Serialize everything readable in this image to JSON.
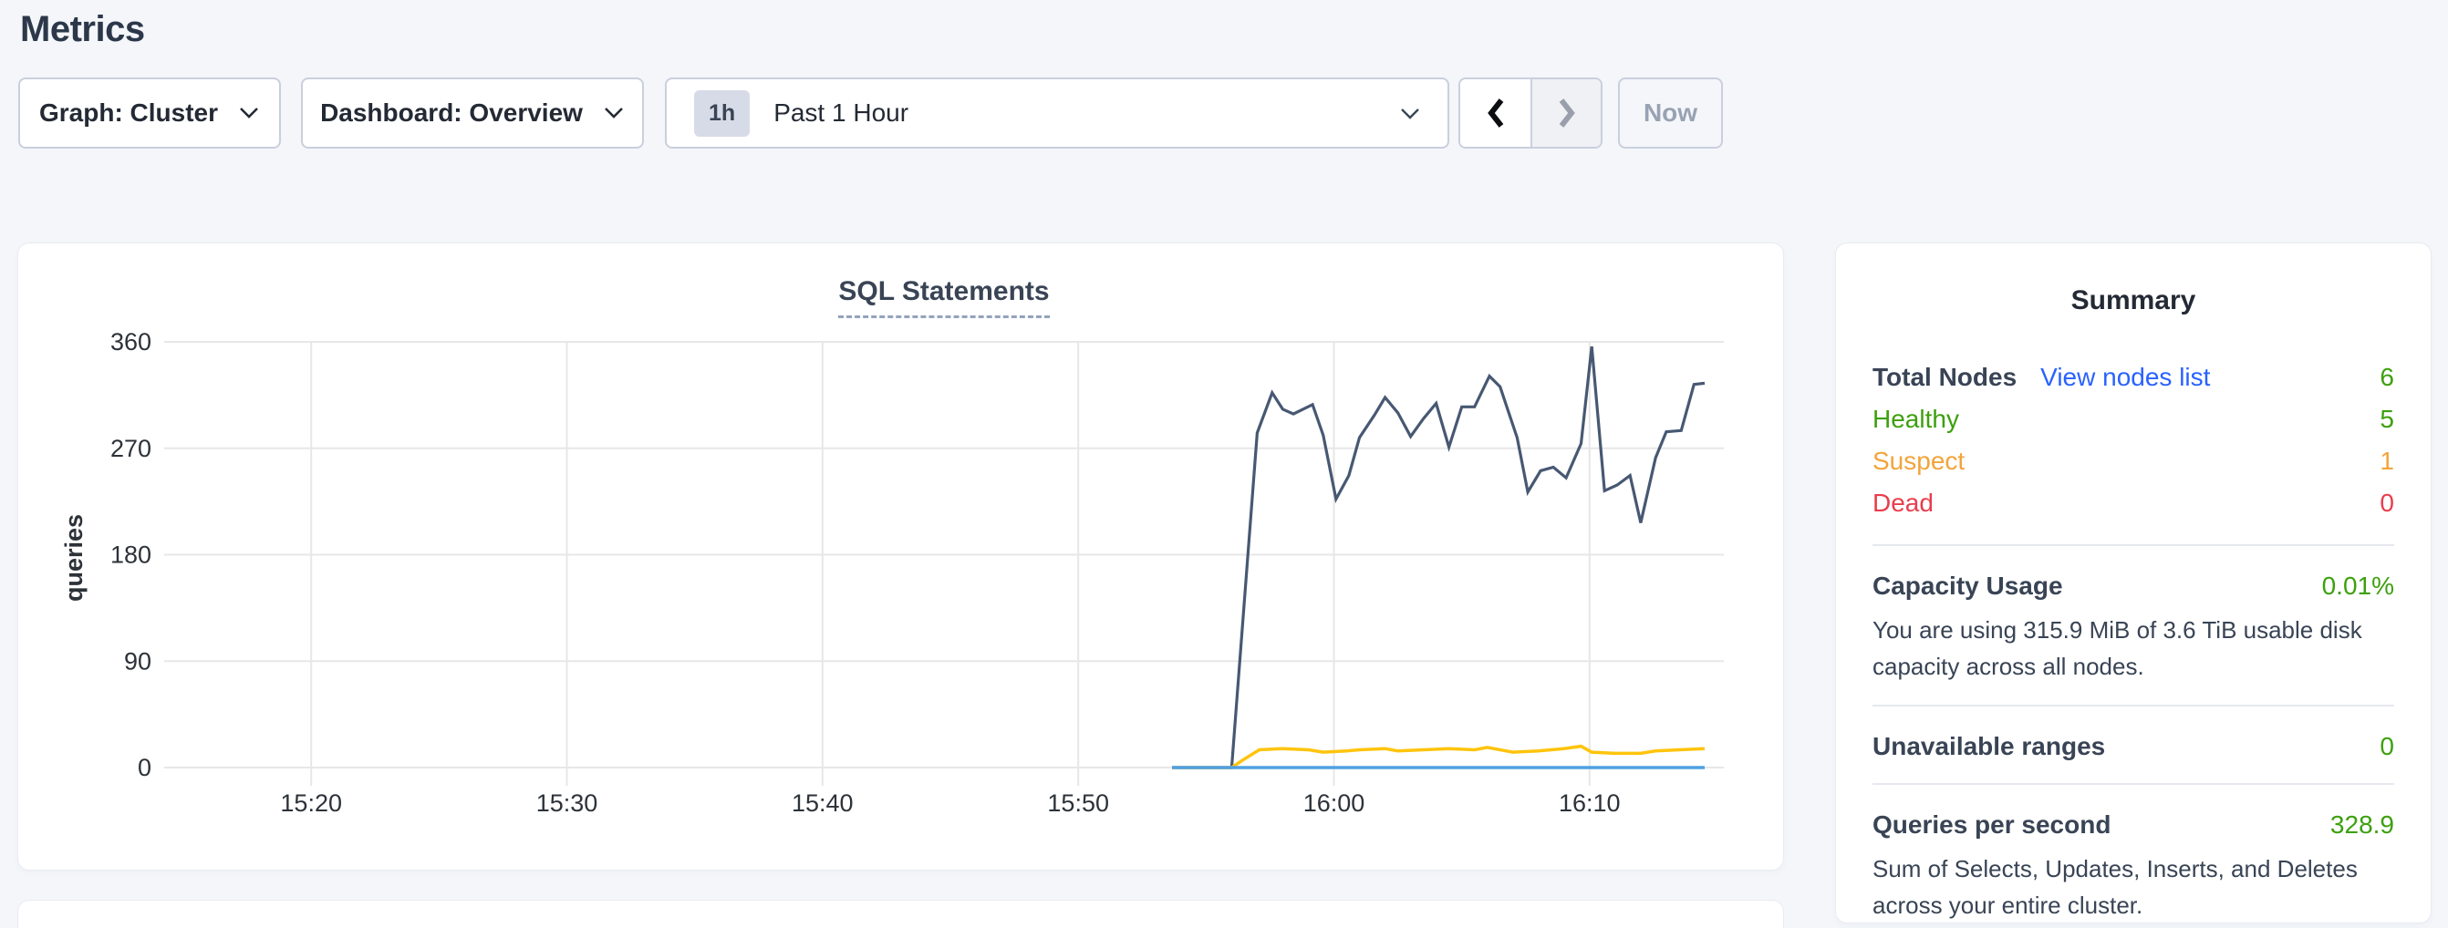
{
  "page": {
    "title": "Metrics"
  },
  "toolbar": {
    "graph_dropdown": {
      "label": "Graph: Cluster"
    },
    "dashboard_dropdown": {
      "label": "Dashboard: Overview"
    },
    "time_selector": {
      "badge": "1h",
      "label": "Past 1 Hour"
    },
    "now_button": {
      "label": "Now"
    }
  },
  "chart_data": {
    "type": "line",
    "title": "SQL Statements",
    "ylabel": "queries",
    "ylim": [
      0,
      360
    ],
    "yticks": [
      0,
      90,
      180,
      270,
      360
    ],
    "xticks": [
      "15:20",
      "15:30",
      "15:40",
      "15:50",
      "16:00",
      "16:10"
    ],
    "x_domain": [
      "15:14:15",
      "16:15:15"
    ],
    "grid": true,
    "legend_visible": false,
    "series": [
      {
        "name": "dark-slate-line",
        "color": "#475872",
        "width": 3.2,
        "points": [
          [
            "15:53:40",
            0
          ],
          [
            "15:56:00",
            0
          ],
          [
            "15:57:00",
            283
          ],
          [
            "15:57:35",
            317
          ],
          [
            "15:58:00",
            303
          ],
          [
            "15:58:25",
            299
          ],
          [
            "15:59:10",
            307
          ],
          [
            "15:59:35",
            281
          ],
          [
            "16:00:05",
            227
          ],
          [
            "16:00:35",
            247
          ],
          [
            "16:01:00",
            279
          ],
          [
            "16:01:35",
            298
          ],
          [
            "16:02:00",
            313
          ],
          [
            "16:02:30",
            300
          ],
          [
            "16:03:00",
            280
          ],
          [
            "16:03:30",
            295
          ],
          [
            "16:04:00",
            308
          ],
          [
            "16:04:30",
            271
          ],
          [
            "16:05:00",
            305
          ],
          [
            "16:05:30",
            305
          ],
          [
            "16:06:05",
            331
          ],
          [
            "16:06:30",
            322
          ],
          [
            "16:07:10",
            279
          ],
          [
            "16:07:35",
            233
          ],
          [
            "16:08:05",
            251
          ],
          [
            "16:08:35",
            254
          ],
          [
            "16:09:05",
            245
          ],
          [
            "16:09:40",
            274
          ],
          [
            "16:10:05",
            356
          ],
          [
            "16:10:35",
            234
          ],
          [
            "16:11:05",
            239
          ],
          [
            "16:11:35",
            247
          ],
          [
            "16:12:00",
            207
          ],
          [
            "16:12:35",
            262
          ],
          [
            "16:13:00",
            284
          ],
          [
            "16:13:35",
            285
          ],
          [
            "16:14:05",
            324
          ],
          [
            "16:14:30",
            325
          ]
        ]
      },
      {
        "name": "yellow-line",
        "color": "#FFC40C",
        "width": 3.5,
        "points": [
          [
            "15:53:40",
            0
          ],
          [
            "15:56:00",
            0
          ],
          [
            "15:56:25",
            6
          ],
          [
            "15:57:05",
            15
          ],
          [
            "15:58:00",
            16
          ],
          [
            "15:59:00",
            15
          ],
          [
            "15:59:35",
            13
          ],
          [
            "16:00:30",
            14
          ],
          [
            "16:01:00",
            15
          ],
          [
            "16:02:00",
            16
          ],
          [
            "16:02:30",
            14
          ],
          [
            "16:03:30",
            15
          ],
          [
            "16:04:30",
            16
          ],
          [
            "16:05:30",
            15
          ],
          [
            "16:06:00",
            17
          ],
          [
            "16:07:00",
            13
          ],
          [
            "16:08:00",
            14
          ],
          [
            "16:09:00",
            16
          ],
          [
            "16:09:40",
            18
          ],
          [
            "16:10:05",
            13
          ],
          [
            "16:11:00",
            12
          ],
          [
            "16:12:00",
            12
          ],
          [
            "16:12:35",
            14
          ],
          [
            "16:13:30",
            15
          ],
          [
            "16:14:30",
            16
          ]
        ]
      },
      {
        "name": "blue-line",
        "color": "#4FA0E2",
        "width": 3.5,
        "points": [
          [
            "15:53:40",
            0
          ],
          [
            "16:14:30",
            0
          ]
        ]
      }
    ]
  },
  "summary": {
    "title": "Summary",
    "node_rows": [
      {
        "label": "Total Nodes",
        "link": "View nodes list",
        "value": "6",
        "value_color": "green"
      },
      {
        "label": "Healthy",
        "value": "5",
        "color": "green"
      },
      {
        "label": "Suspect",
        "value": "1",
        "color": "orange"
      },
      {
        "label": "Dead",
        "value": "0",
        "color": "red"
      }
    ],
    "sections": [
      {
        "label": "Capacity Usage",
        "value": "0.01%",
        "value_color": "green",
        "description": "You are using 315.9 MiB of 3.6 TiB usable disk capacity across all nodes."
      },
      {
        "label": "Unavailable ranges",
        "value": "0",
        "value_color": "green",
        "description": ""
      },
      {
        "label": "Queries per second",
        "value": "328.9",
        "value_color": "green",
        "description": "Sum of Selects, Updates, Inserts, and Deletes across your entire cluster."
      }
    ]
  },
  "colors": {
    "green": "#3DA00E",
    "orange": "#F2A43B",
    "red": "#E93D4C",
    "link": "#2962FF",
    "series_dark": "#475872",
    "series_yellow": "#FFC40C",
    "series_blue": "#4FA0E2",
    "grid": "#e7e7e7",
    "tick_text": "#2d3239",
    "page_bg": "#f4f6fa",
    "card_bg": "#ffffff"
  }
}
